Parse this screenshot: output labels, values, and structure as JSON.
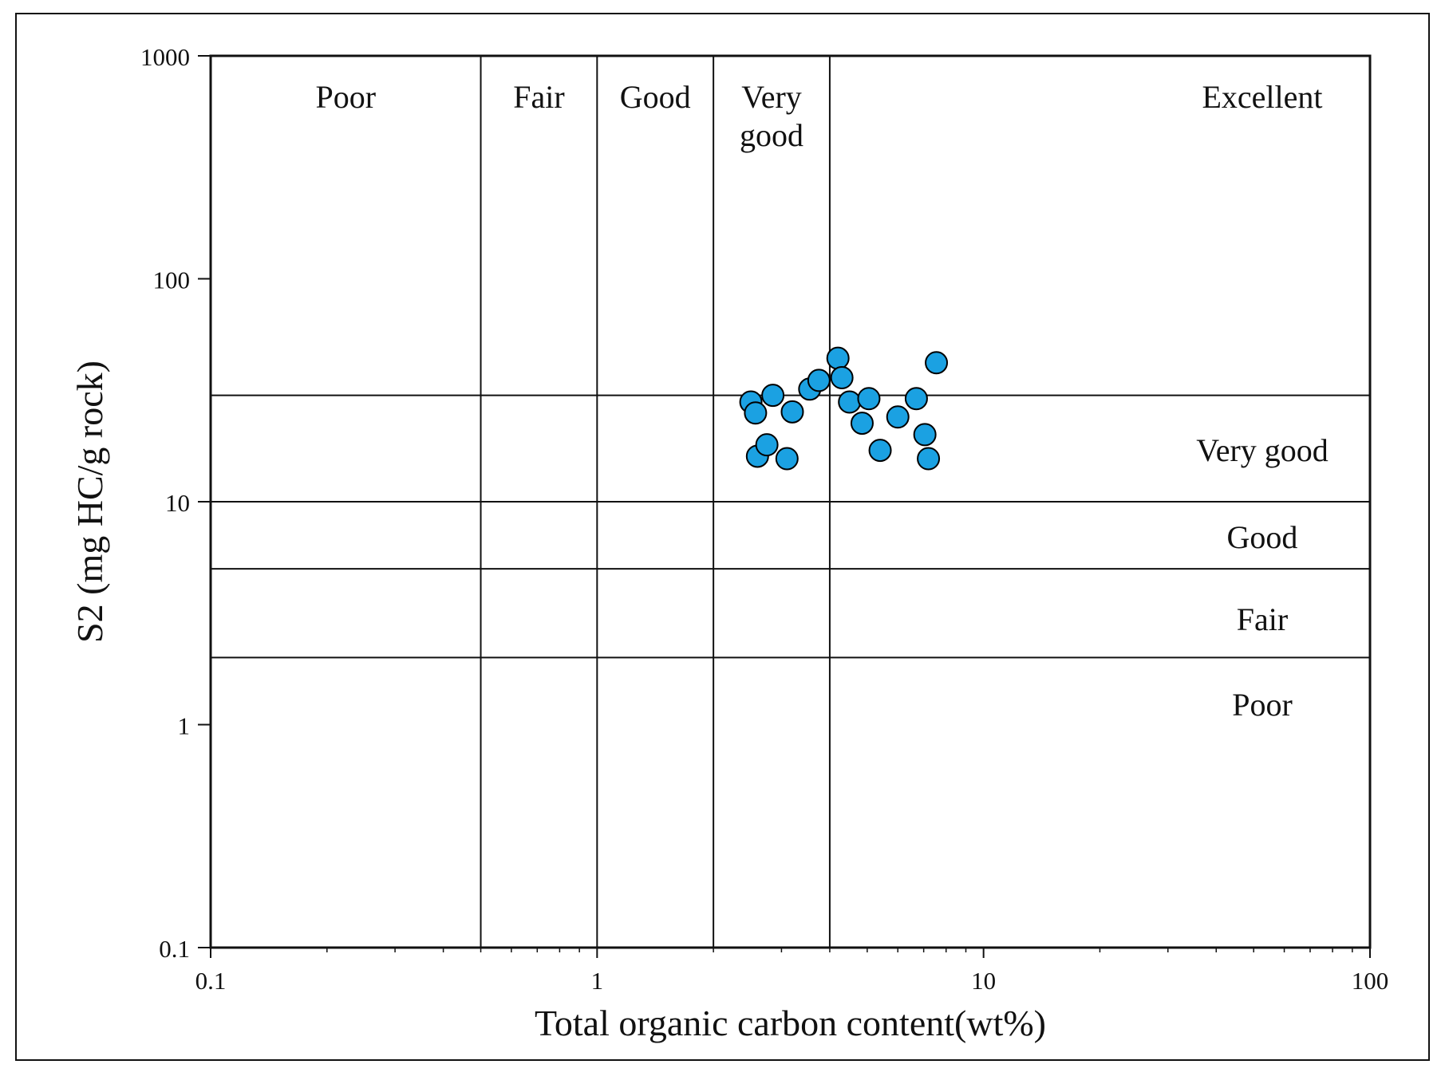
{
  "chart_data": {
    "type": "scatter",
    "xlabel": "Total organic carbon content(wt%)",
    "ylabel": "S2 (mg HC/g rock)",
    "xscale": "log",
    "yscale": "log",
    "xlim": [
      0.1,
      100
    ],
    "ylim": [
      0.1,
      1000
    ],
    "x_ticks": [
      "0.1",
      "1",
      "10",
      "100"
    ],
    "y_ticks": [
      "0.1",
      "1",
      "10",
      "100",
      "1000"
    ],
    "grid": false,
    "x_boundaries": [
      0.5,
      1,
      2,
      4
    ],
    "y_boundaries": [
      2,
      5,
      10,
      30
    ],
    "x_regions": [
      {
        "label": "Poor",
        "from": 0.1,
        "to": 0.5
      },
      {
        "label": "Fair",
        "from": 0.5,
        "to": 1
      },
      {
        "label": "Good",
        "from": 1,
        "to": 2
      },
      {
        "label": "Very\ngood",
        "from": 2,
        "to": 4
      },
      {
        "label": "Excellent",
        "from": 4,
        "to": 100
      }
    ],
    "y_regions": [
      {
        "label": "Very good",
        "from": 10,
        "to": 30
      },
      {
        "label": "Good",
        "from": 5,
        "to": 10
      },
      {
        "label": "Fair",
        "from": 2,
        "to": 5
      },
      {
        "label": "Poor",
        "from": 0.1,
        "to": 2
      }
    ],
    "marker_color": "#1ba1e2",
    "marker_edge": "#000000",
    "series": [
      {
        "x": [
          2.5,
          2.57,
          2.6,
          2.75,
          2.85,
          3.1,
          3.2,
          3.55,
          3.75,
          4.2,
          4.3,
          4.5,
          4.85,
          5.05,
          5.4,
          6.0,
          6.7,
          7.05,
          7.2,
          7.55
        ],
        "y": [
          28,
          25,
          16,
          18,
          30,
          15.6,
          25.3,
          32,
          35,
          44,
          36,
          28,
          22.5,
          29,
          17,
          24,
          29,
          20,
          15.6,
          42
        ]
      }
    ]
  }
}
